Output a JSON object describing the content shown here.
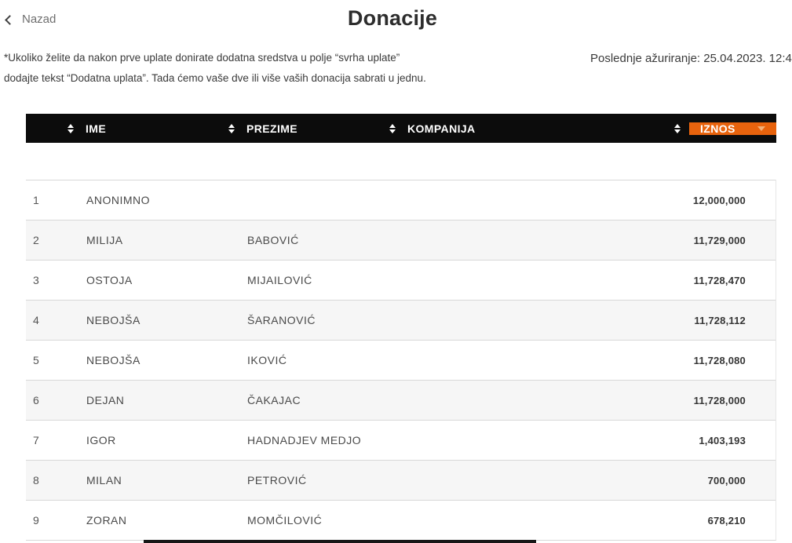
{
  "header": {
    "back_label": "Nazad",
    "title": "Donacije",
    "note_line1": "*Ukoliko želite da nakon prve uplate donirate dodatna sredstva u polje “svrha uplate”",
    "note_line2": "dodajte tekst “Dodatna uplata”. Tada ćemo vaše dve ili više vaših donacija sabrati u jednu.",
    "last_update": "Poslednje ažuriranje: 25.04.2023. 12:4"
  },
  "table": {
    "columns": {
      "ime": "IME",
      "prezime": "PREZIME",
      "kompanija": "KOMPANIJA",
      "iznos": "IZNOS"
    },
    "rows": [
      {
        "rank": "1",
        "ime": "ANONIMNO",
        "prezime": "",
        "kompanija": "",
        "iznos": "12,000,000"
      },
      {
        "rank": "2",
        "ime": "MILIJA",
        "prezime": "BABOVIĆ",
        "kompanija": "",
        "iznos": "11,729,000"
      },
      {
        "rank": "3",
        "ime": "OSTOJA",
        "prezime": "MIJAILOVIĆ",
        "kompanija": "",
        "iznos": "11,728,470"
      },
      {
        "rank": "4",
        "ime": "NEBOJŠA",
        "prezime": "ŠARANOVIĆ",
        "kompanija": "",
        "iznos": "11,728,112"
      },
      {
        "rank": "5",
        "ime": "NEBOJŠA",
        "prezime": "IKOVIĆ",
        "kompanija": "",
        "iznos": "11,728,080"
      },
      {
        "rank": "6",
        "ime": "DEJAN",
        "prezime": "ČAKAJAC",
        "kompanija": "",
        "iznos": "11,728,000"
      },
      {
        "rank": "7",
        "ime": "IGOR",
        "prezime": "HADNADJEV MEDJO",
        "kompanija": "",
        "iznos": "1,403,193"
      },
      {
        "rank": "8",
        "ime": "MILAN",
        "prezime": "PETROVIĆ",
        "kompanija": "",
        "iznos": "700,000"
      },
      {
        "rank": "9",
        "ime": "ZORAN",
        "prezime": "MOMČILOVIĆ",
        "kompanija": "",
        "iznos": "678,210"
      }
    ]
  },
  "colors": {
    "accent_orange": "#e8630d",
    "header_bg": "#0c0c0c",
    "row_alt_bg": "#f6f6f6"
  }
}
